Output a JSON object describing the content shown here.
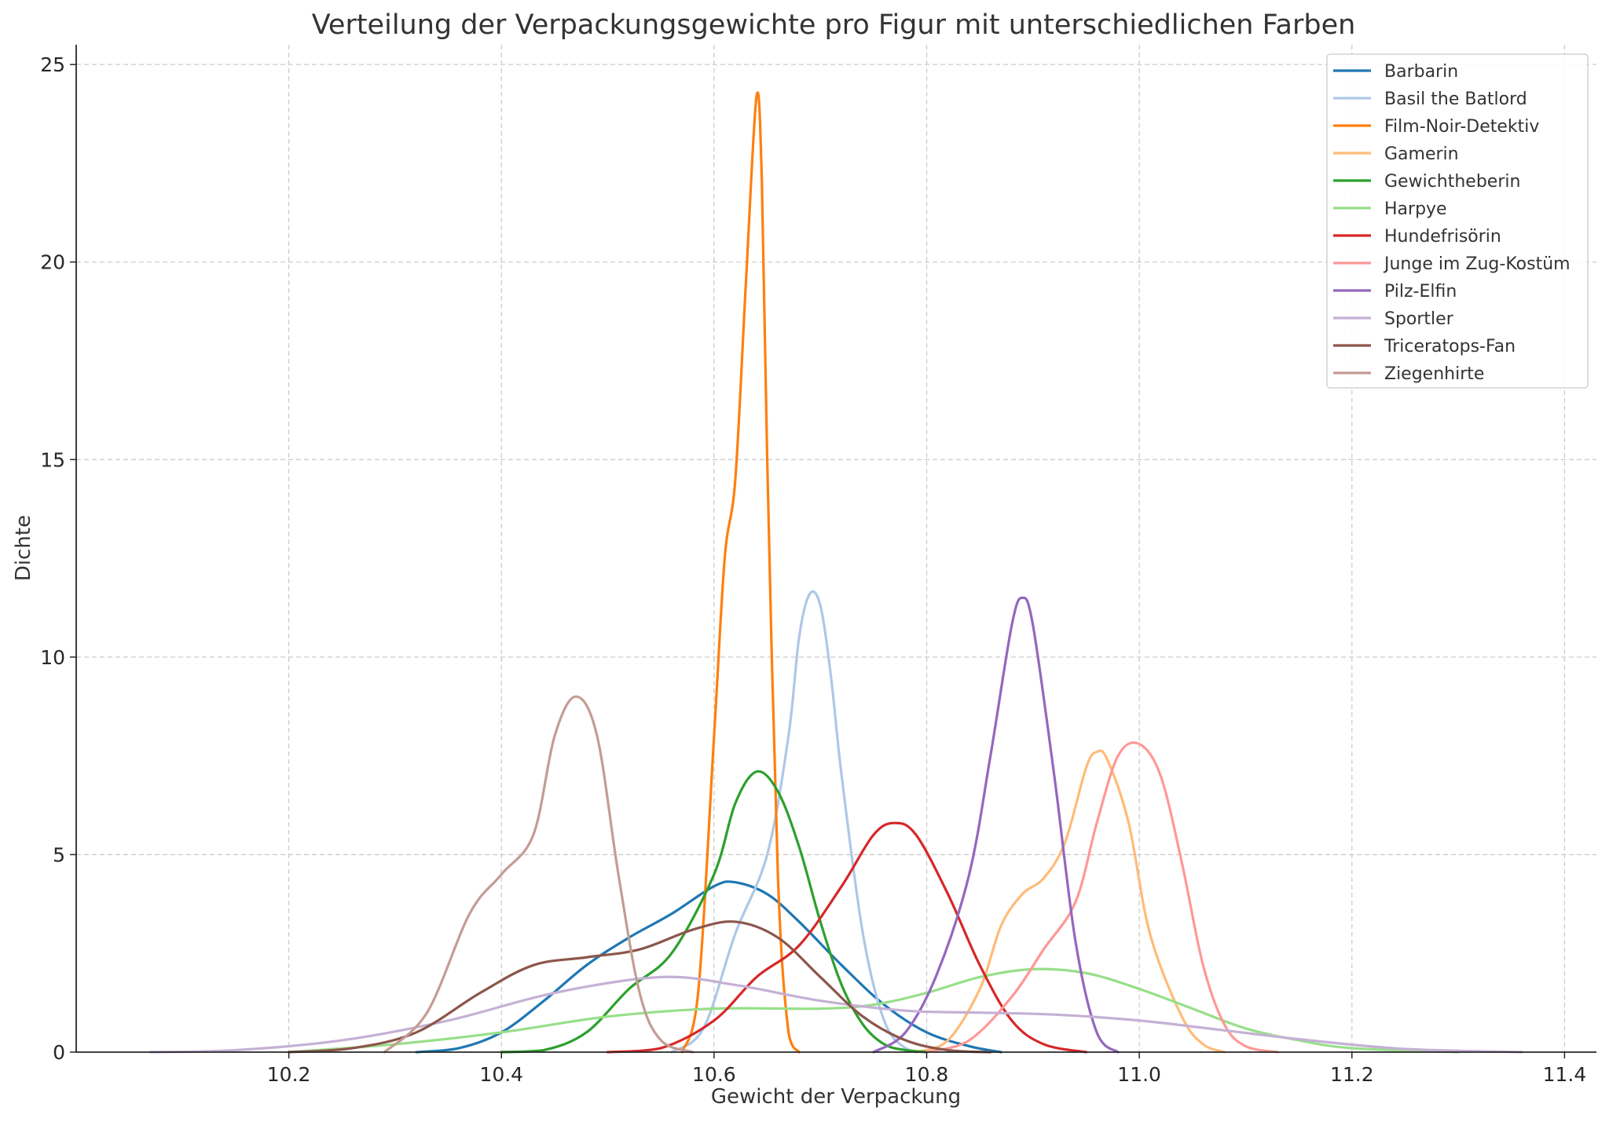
{
  "chart_data": {
    "type": "line",
    "title": "Verteilung der Verpackungsgewichte pro Figur mit unterschiedlichen Farben",
    "xlabel": "Gewicht der Verpackung",
    "ylabel": "Dichte",
    "xlim": [
      10.0,
      11.43
    ],
    "ylim": [
      0,
      25.5
    ],
    "x_ticks": [
      10.2,
      10.4,
      10.6,
      10.8,
      11.0,
      11.2,
      11.4
    ],
    "x_tick_labels": [
      "10.2",
      "10.4",
      "10.6",
      "10.8",
      "11.0",
      "11.2",
      "11.4"
    ],
    "y_ticks": [
      0,
      5,
      10,
      15,
      20,
      25
    ],
    "y_tick_labels": [
      "0",
      "5",
      "10",
      "15",
      "20",
      "25"
    ],
    "grid": true,
    "legend_position": "top-right",
    "series": [
      {
        "name": "Barbarin",
        "color": "#1f77b4",
        "x": [
          10.32,
          10.36,
          10.4,
          10.44,
          10.48,
          10.52,
          10.56,
          10.6,
          10.62,
          10.65,
          10.68,
          10.72,
          10.76,
          10.8,
          10.84,
          10.87
        ],
        "y": [
          0.0,
          0.1,
          0.5,
          1.3,
          2.2,
          2.9,
          3.5,
          4.2,
          4.3,
          4.0,
          3.3,
          2.2,
          1.2,
          0.5,
          0.15,
          0.0
        ]
      },
      {
        "name": "Basil the Batlord",
        "color": "#aec7e8",
        "x": [
          10.56,
          10.59,
          10.62,
          10.65,
          10.67,
          10.68,
          10.69,
          10.7,
          10.71,
          10.72,
          10.74,
          10.76,
          10.78,
          10.8
        ],
        "y": [
          0.0,
          0.6,
          3.0,
          5.0,
          8.0,
          10.5,
          11.6,
          11.3,
          9.5,
          7.0,
          3.0,
          0.8,
          0.1,
          0.0
        ]
      },
      {
        "name": "Film-Noir-Detektiv",
        "color": "#ff7f0e",
        "x": [
          10.57,
          10.585,
          10.6,
          10.61,
          10.62,
          10.63,
          10.64,
          10.645,
          10.65,
          10.66,
          10.67,
          10.68
        ],
        "y": [
          0.0,
          1.5,
          8.0,
          12.5,
          14.5,
          19.5,
          24.2,
          22.0,
          15.0,
          4.5,
          0.5,
          0.0
        ]
      },
      {
        "name": "Gamerin",
        "color": "#ffbb78",
        "x": [
          10.79,
          10.82,
          10.85,
          10.87,
          10.89,
          10.91,
          10.93,
          10.95,
          10.96,
          10.97,
          10.99,
          11.01,
          11.04,
          11.06,
          11.08
        ],
        "y": [
          0.0,
          0.3,
          1.6,
          3.2,
          4.0,
          4.4,
          5.3,
          7.2,
          7.6,
          7.4,
          5.8,
          3.0,
          0.9,
          0.2,
          0.0
        ]
      },
      {
        "name": "Gewichtheberin",
        "color": "#2ca02c",
        "x": [
          10.4,
          10.44,
          10.48,
          10.52,
          10.56,
          10.6,
          10.62,
          10.64,
          10.66,
          10.68,
          10.7,
          10.72,
          10.74,
          10.76,
          10.78,
          10.8
        ],
        "y": [
          0.0,
          0.05,
          0.5,
          1.6,
          2.5,
          4.5,
          6.3,
          7.1,
          6.6,
          5.2,
          3.3,
          1.7,
          0.7,
          0.2,
          0.05,
          0.0
        ]
      },
      {
        "name": "Harpye",
        "color": "#98df8a",
        "x": [
          10.2,
          10.3,
          10.4,
          10.5,
          10.6,
          10.7,
          10.75,
          10.8,
          10.85,
          10.9,
          10.95,
          11.0,
          11.05,
          11.1,
          11.15,
          11.2,
          11.3
        ],
        "y": [
          0.0,
          0.2,
          0.5,
          0.9,
          1.1,
          1.1,
          1.2,
          1.5,
          1.9,
          2.1,
          2.0,
          1.6,
          1.1,
          0.6,
          0.3,
          0.1,
          0.0
        ]
      },
      {
        "name": "Hundefrisörin",
        "color": "#d62728",
        "x": [
          10.5,
          10.55,
          10.6,
          10.64,
          10.68,
          10.72,
          10.75,
          10.77,
          10.79,
          10.82,
          10.85,
          10.88,
          10.91,
          10.95
        ],
        "y": [
          0.0,
          0.1,
          0.8,
          1.9,
          2.7,
          4.2,
          5.5,
          5.8,
          5.5,
          4.0,
          2.2,
          0.8,
          0.2,
          0.0
        ]
      },
      {
        "name": "Junge im Zug-Kostüm",
        "color": "#ff9896",
        "x": [
          10.8,
          10.84,
          10.88,
          10.91,
          10.94,
          10.96,
          10.98,
          11.0,
          11.02,
          11.04,
          11.06,
          11.08,
          11.1,
          11.13
        ],
        "y": [
          0.0,
          0.3,
          1.4,
          2.6,
          3.8,
          5.8,
          7.5,
          7.8,
          7.0,
          4.8,
          2.2,
          0.7,
          0.15,
          0.0
        ]
      },
      {
        "name": "Pilz-Elfin",
        "color": "#9467bd",
        "x": [
          10.75,
          10.78,
          10.81,
          10.84,
          10.86,
          10.88,
          10.89,
          10.9,
          10.92,
          10.94,
          10.96,
          10.98
        ],
        "y": [
          0.0,
          0.5,
          2.0,
          4.5,
          7.5,
          10.8,
          11.5,
          10.8,
          7.0,
          2.8,
          0.5,
          0.0
        ]
      },
      {
        "name": "Sportler",
        "color": "#c5b0d5",
        "x": [
          10.07,
          10.15,
          10.25,
          10.35,
          10.45,
          10.55,
          10.62,
          10.7,
          10.78,
          10.85,
          10.92,
          11.0,
          11.08,
          11.16,
          11.25,
          11.36
        ],
        "y": [
          0.0,
          0.05,
          0.3,
          0.8,
          1.5,
          1.9,
          1.7,
          1.3,
          1.05,
          1.0,
          0.95,
          0.8,
          0.55,
          0.3,
          0.08,
          0.0
        ]
      },
      {
        "name": "Triceratops-Fan",
        "color": "#8c564b",
        "x": [
          10.2,
          10.26,
          10.32,
          10.38,
          10.43,
          10.48,
          10.53,
          10.58,
          10.62,
          10.66,
          10.7,
          10.74,
          10.78,
          10.82,
          10.86
        ],
        "y": [
          0.0,
          0.1,
          0.5,
          1.5,
          2.2,
          2.4,
          2.6,
          3.1,
          3.3,
          2.9,
          1.9,
          0.9,
          0.3,
          0.05,
          0.0
        ]
      },
      {
        "name": "Ziegenhirte",
        "color": "#c49c94",
        "x": [
          10.29,
          10.33,
          10.37,
          10.4,
          10.43,
          10.45,
          10.47,
          10.49,
          10.51,
          10.53,
          10.55,
          10.58
        ],
        "y": [
          0.0,
          1.0,
          3.5,
          4.5,
          5.5,
          8.0,
          9.0,
          8.0,
          4.5,
          1.5,
          0.3,
          0.0
        ]
      }
    ]
  }
}
